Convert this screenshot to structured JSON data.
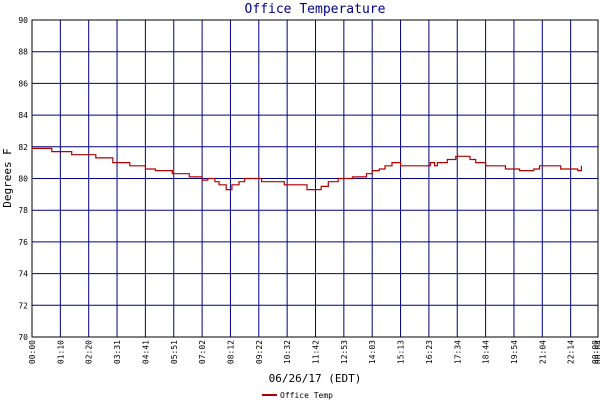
{
  "chart_data": {
    "type": "line",
    "title": "Office Temperature",
    "xlabel": "06/26/17 (EDT)",
    "ylabel": "Degrees F",
    "ylim": [
      70,
      90
    ],
    "yticks": [
      "70",
      "72",
      "74",
      "76",
      "78",
      "80",
      "82",
      "84",
      "86",
      "88",
      "90"
    ],
    "xticks": [
      "00:00",
      "01:10",
      "02:20",
      "03:31",
      "04:41",
      "05:51",
      "07:02",
      "08:12",
      "09:22",
      "10:32",
      "11:42",
      "12:53",
      "14:03",
      "15:13",
      "16:23",
      "17:34",
      "18:44",
      "19:54",
      "21:04",
      "22:14",
      "00:00",
      "00:04"
    ],
    "grid": true,
    "legend_position": "bottom-left",
    "colors": {
      "grid": "#000080",
      "series": "#b00000",
      "border": "#000000"
    },
    "series": [
      {
        "name": "Office Temp",
        "points": [
          [
            0.0,
            81.9
          ],
          [
            0.6,
            81.9
          ],
          [
            0.7,
            81.7
          ],
          [
            1.0,
            81.7
          ],
          [
            1.4,
            81.5
          ],
          [
            2.2,
            81.5
          ],
          [
            2.25,
            81.3
          ],
          [
            2.8,
            81.3
          ],
          [
            2.85,
            81.0
          ],
          [
            3.4,
            81.0
          ],
          [
            3.45,
            80.8
          ],
          [
            3.95,
            80.8
          ],
          [
            4.0,
            80.6
          ],
          [
            4.3,
            80.6
          ],
          [
            4.35,
            80.5
          ],
          [
            4.9,
            80.5
          ],
          [
            4.95,
            80.3
          ],
          [
            5.5,
            80.3
          ],
          [
            5.55,
            80.1
          ],
          [
            5.9,
            80.1
          ],
          [
            6.0,
            79.9
          ],
          [
            6.2,
            80.0
          ],
          [
            6.3,
            80.0
          ],
          [
            6.45,
            79.8
          ],
          [
            6.6,
            79.6
          ],
          [
            6.75,
            79.6
          ],
          [
            6.85,
            79.3
          ],
          [
            6.95,
            79.3
          ],
          [
            7.05,
            79.6
          ],
          [
            7.2,
            79.6
          ],
          [
            7.3,
            79.8
          ],
          [
            7.45,
            79.8
          ],
          [
            7.5,
            80.0
          ],
          [
            8.05,
            80.0
          ],
          [
            8.1,
            79.8
          ],
          [
            8.85,
            79.8
          ],
          [
            8.9,
            79.6
          ],
          [
            9.65,
            79.6
          ],
          [
            9.7,
            79.3
          ],
          [
            10.15,
            79.3
          ],
          [
            10.2,
            79.5
          ],
          [
            10.4,
            79.5
          ],
          [
            10.45,
            79.8
          ],
          [
            10.75,
            79.8
          ],
          [
            10.8,
            80.0
          ],
          [
            11.25,
            80.0
          ],
          [
            11.3,
            80.1
          ],
          [
            11.75,
            80.1
          ],
          [
            11.8,
            80.3
          ],
          [
            11.95,
            80.3
          ],
          [
            12.0,
            80.5
          ],
          [
            12.2,
            80.5
          ],
          [
            12.25,
            80.6
          ],
          [
            12.4,
            80.6
          ],
          [
            12.45,
            80.8
          ],
          [
            12.65,
            80.8
          ],
          [
            12.7,
            81.0
          ],
          [
            12.95,
            81.0
          ],
          [
            13.0,
            80.8
          ],
          [
            14.0,
            80.8
          ],
          [
            14.05,
            81.0
          ],
          [
            14.15,
            81.0
          ],
          [
            14.2,
            80.8
          ],
          [
            14.3,
            81.0
          ],
          [
            14.6,
            81.0
          ],
          [
            14.65,
            81.2
          ],
          [
            14.9,
            81.2
          ],
          [
            14.95,
            81.4
          ],
          [
            15.4,
            81.4
          ],
          [
            15.45,
            81.2
          ],
          [
            15.6,
            81.2
          ],
          [
            15.65,
            81.0
          ],
          [
            15.95,
            81.0
          ],
          [
            16.0,
            80.8
          ],
          [
            16.65,
            80.8
          ],
          [
            16.7,
            80.6
          ],
          [
            17.15,
            80.6
          ],
          [
            17.2,
            80.5
          ],
          [
            17.65,
            80.5
          ],
          [
            17.7,
            80.6
          ],
          [
            17.85,
            80.6
          ],
          [
            17.9,
            80.8
          ],
          [
            18.6,
            80.8
          ],
          [
            18.65,
            80.6
          ],
          [
            19.2,
            80.6
          ],
          [
            19.25,
            80.5
          ],
          [
            19.35,
            80.5
          ],
          [
            19.38,
            80.8
          ]
        ]
      }
    ]
  }
}
